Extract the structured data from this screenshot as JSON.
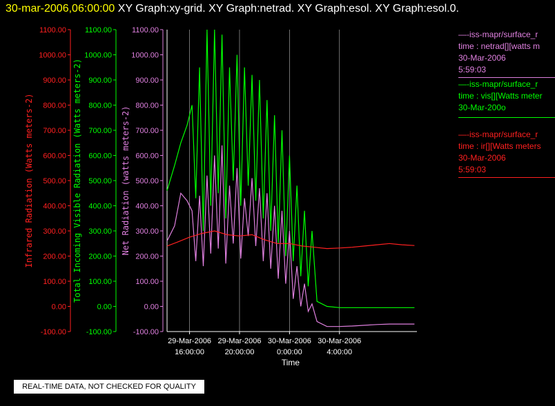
{
  "header": {
    "timestamp": "30-mar-2006,06:00:00",
    "graphs": "XY Graph:xy-grid.  XY Graph:netrad.  XY Graph:esol.  XY Graph:esol.0."
  },
  "colors": {
    "infrared": "#ff2020",
    "visible": "#00ff00",
    "net": "#e080e0",
    "timestamp": "#ffff00"
  },
  "chart_data": {
    "type": "line",
    "xlabel": "Time",
    "x_ticks": [
      {
        "line1": "29-Mar-2006",
        "line2": "16:00:00"
      },
      {
        "line1": "29-Mar-2006",
        "line2": "20:00:00"
      },
      {
        "line1": "30-Mar-2006",
        "line2": "0:00:00"
      },
      {
        "line1": "30-Mar-2006",
        "line2": "4:00:00"
      }
    ],
    "x_range_hours": [
      14.2,
      34.2
    ],
    "y_ticks": [
      "1100.00",
      "1000.00",
      "900.00",
      "800.00",
      "700.00",
      "600.00",
      "500.00",
      "400.00",
      "300.00",
      "200.00",
      "100.00",
      "0.00",
      "-100.00"
    ],
    "ylim": [
      -100,
      1100
    ],
    "axes": [
      {
        "label": "Infrared Radiation (Watts meters-2)",
        "color": "#ff2020"
      },
      {
        "label": "Total Incoming Visible Radiation (Watts meters-2)",
        "color": "#00ff00"
      },
      {
        "label": "Net Radiation (watts meters-2)",
        "color": "#e080e0"
      }
    ],
    "series": [
      {
        "name": "Net Radiation",
        "x": [
          14.2,
          14.8,
          15.3,
          15.8,
          16.2,
          16.5,
          16.8,
          17.1,
          17.4,
          17.7,
          18.0,
          18.3,
          18.6,
          18.9,
          19.2,
          19.5,
          19.8,
          20.1,
          20.4,
          20.7,
          21.0,
          21.3,
          21.6,
          21.9,
          22.2,
          22.5,
          22.8,
          23.1,
          23.4,
          23.7,
          24.0,
          24.3,
          24.6,
          24.9,
          25.2,
          25.5,
          25.8,
          26.2,
          27.0,
          28.0,
          29.0,
          30.0,
          31.0,
          32.0,
          33.0,
          34.0
        ],
        "values": [
          260,
          320,
          450,
          420,
          380,
          180,
          440,
          160,
          520,
          210,
          600,
          230,
          640,
          170,
          480,
          250,
          550,
          190,
          430,
          280,
          510,
          240,
          470,
          180,
          450,
          150,
          400,
          110,
          380,
          90,
          300,
          30,
          160,
          0,
          90,
          -20,
          10,
          -60,
          -80,
          -80,
          -78,
          -75,
          -72,
          -70,
          -70,
          -70
        ]
      },
      {
        "name": "Total Incoming Visible Radiation",
        "x": [
          14.2,
          14.8,
          15.3,
          15.8,
          16.2,
          16.5,
          16.8,
          17.1,
          17.4,
          17.7,
          18.0,
          18.3,
          18.6,
          18.9,
          19.2,
          19.5,
          19.8,
          20.1,
          20.4,
          20.7,
          21.0,
          21.3,
          21.6,
          21.9,
          22.2,
          22.5,
          22.8,
          23.1,
          23.4,
          23.7,
          24.0,
          24.3,
          24.6,
          24.9,
          25.2,
          25.5,
          25.8,
          26.2,
          27.0,
          28.0,
          29.0,
          30.0,
          31.0,
          32.0,
          33.0,
          34.0
        ],
        "values": [
          460,
          560,
          650,
          720,
          800,
          430,
          950,
          300,
          1100,
          400,
          1100,
          450,
          1080,
          350,
          950,
          500,
          1000,
          400,
          950,
          480,
          920,
          420,
          900,
          350,
          820,
          300,
          760,
          250,
          700,
          200,
          600,
          180,
          480,
          120,
          380,
          80,
          300,
          20,
          0,
          -5,
          -5,
          -5,
          -5,
          -5,
          -5,
          -5
        ]
      },
      {
        "name": "Infrared Radiation",
        "x": [
          14.2,
          15.0,
          16.0,
          17.0,
          18.0,
          19.0,
          20.0,
          21.0,
          22.0,
          23.0,
          24.0,
          25.0,
          26.0,
          27.0,
          28.0,
          29.0,
          30.0,
          31.0,
          32.0,
          33.0,
          34.0
        ],
        "values": [
          240,
          255,
          275,
          290,
          300,
          285,
          280,
          285,
          265,
          250,
          250,
          240,
          235,
          230,
          232,
          235,
          240,
          245,
          250,
          245,
          242
        ]
      }
    ]
  },
  "legend": [
    {
      "lines": [
        "—-iss-mapr/surface_r",
        "time : netrad[][watts m",
        "30-Mar-2006",
        "5:59:03"
      ],
      "color": "#e080e0"
    },
    {
      "lines": [
        "—-iss-mapr/surface_r",
        "time : vis[][Watts meter",
        "30-Mar-200o"
      ],
      "color": "#00ff00"
    },
    {
      "lines": [
        "—-iss-mapr/surface_r",
        "time : ir[][Watts meters",
        "30-Mar-2006",
        "5:59:03"
      ],
      "color": "#ff2020"
    }
  ],
  "notice": "REAL-TIME DATA, NOT CHECKED FOR QUALITY"
}
